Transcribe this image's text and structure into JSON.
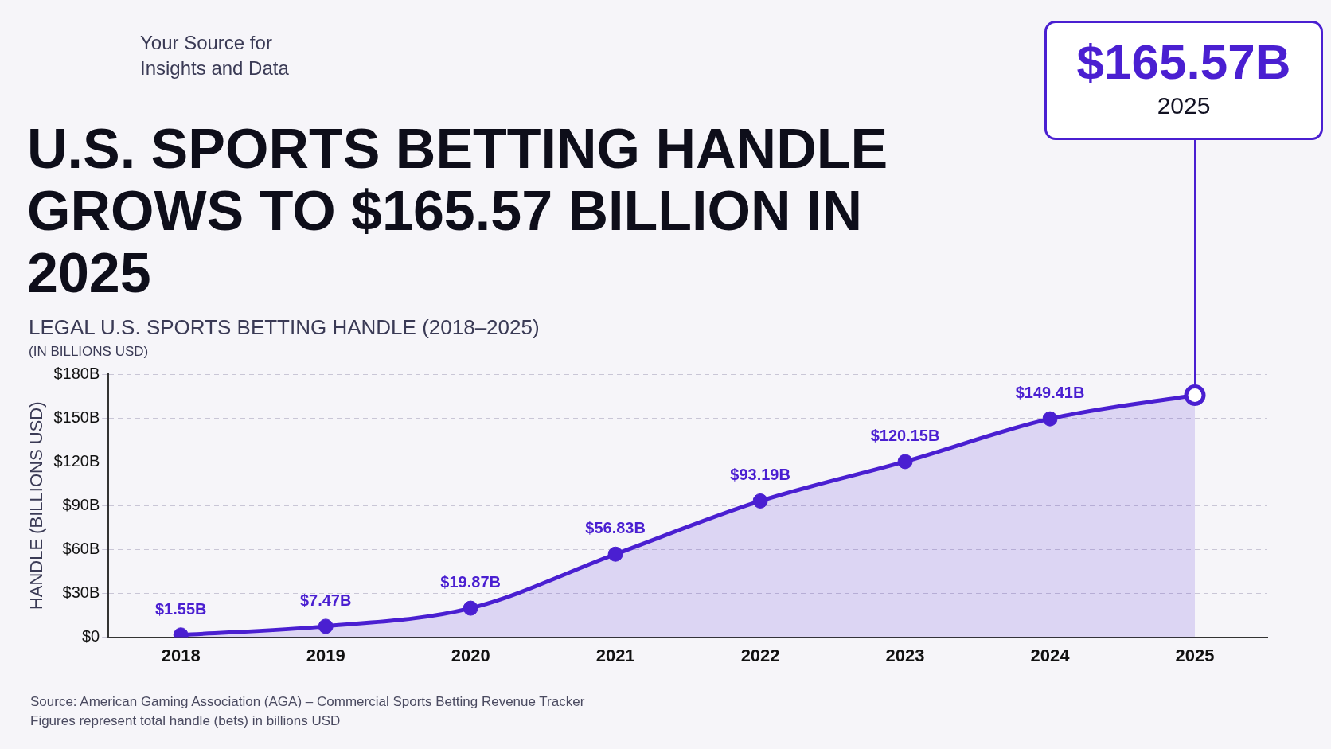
{
  "chart_data": {
    "type": "area",
    "title": "U.S. SPORTS BETTING HANDLE GROWS TO $165.57 BILLION IN 2025",
    "subtitle": "LEGAL U.S. SPORTS BETTING HANDLE (2018–2025)",
    "ylabel": "HANDLE (BILLIONS USD)",
    "categories": [
      "2018",
      "2019",
      "2020",
      "2021",
      "2022",
      "2023",
      "2024",
      "2025"
    ],
    "series": [
      {
        "color": "#4a1fd1",
        "values": [
          1.55,
          7.47,
          19.87,
          56.83,
          93.19,
          120.15,
          149.41,
          165.57
        ],
        "value_labels": [
          "$1.55B",
          "$7.47B",
          "$19.87B",
          "$56.83B",
          "$93.19B",
          "$120.15B",
          "$149.41B",
          null
        ]
      }
    ],
    "ylim": [
      0,
      180
    ],
    "yticks": [
      {
        "value": 0,
        "label": "$0"
      },
      {
        "value": 30,
        "label": "$30B"
      },
      {
        "value": 60,
        "label": "$60B"
      },
      {
        "value": 90,
        "label": "$90B"
      },
      {
        "value": 120,
        "label": "$120B"
      },
      {
        "value": 150,
        "label": "$150B"
      },
      {
        "value": 180,
        "label": "$180B"
      }
    ],
    "grid": "y",
    "legend": false,
    "marker": "circle",
    "line_style": "solid",
    "annotations": [
      "Your Source for\nInsights and Data",
      "(IN BILLIONS USD)",
      "$165.57B",
      "2025",
      "Source: American Gaming Association (AGA) – Commercial Sports Betting Revenue Tracker",
      "Figures represent total handle (bets) in billions USD"
    ]
  }
}
